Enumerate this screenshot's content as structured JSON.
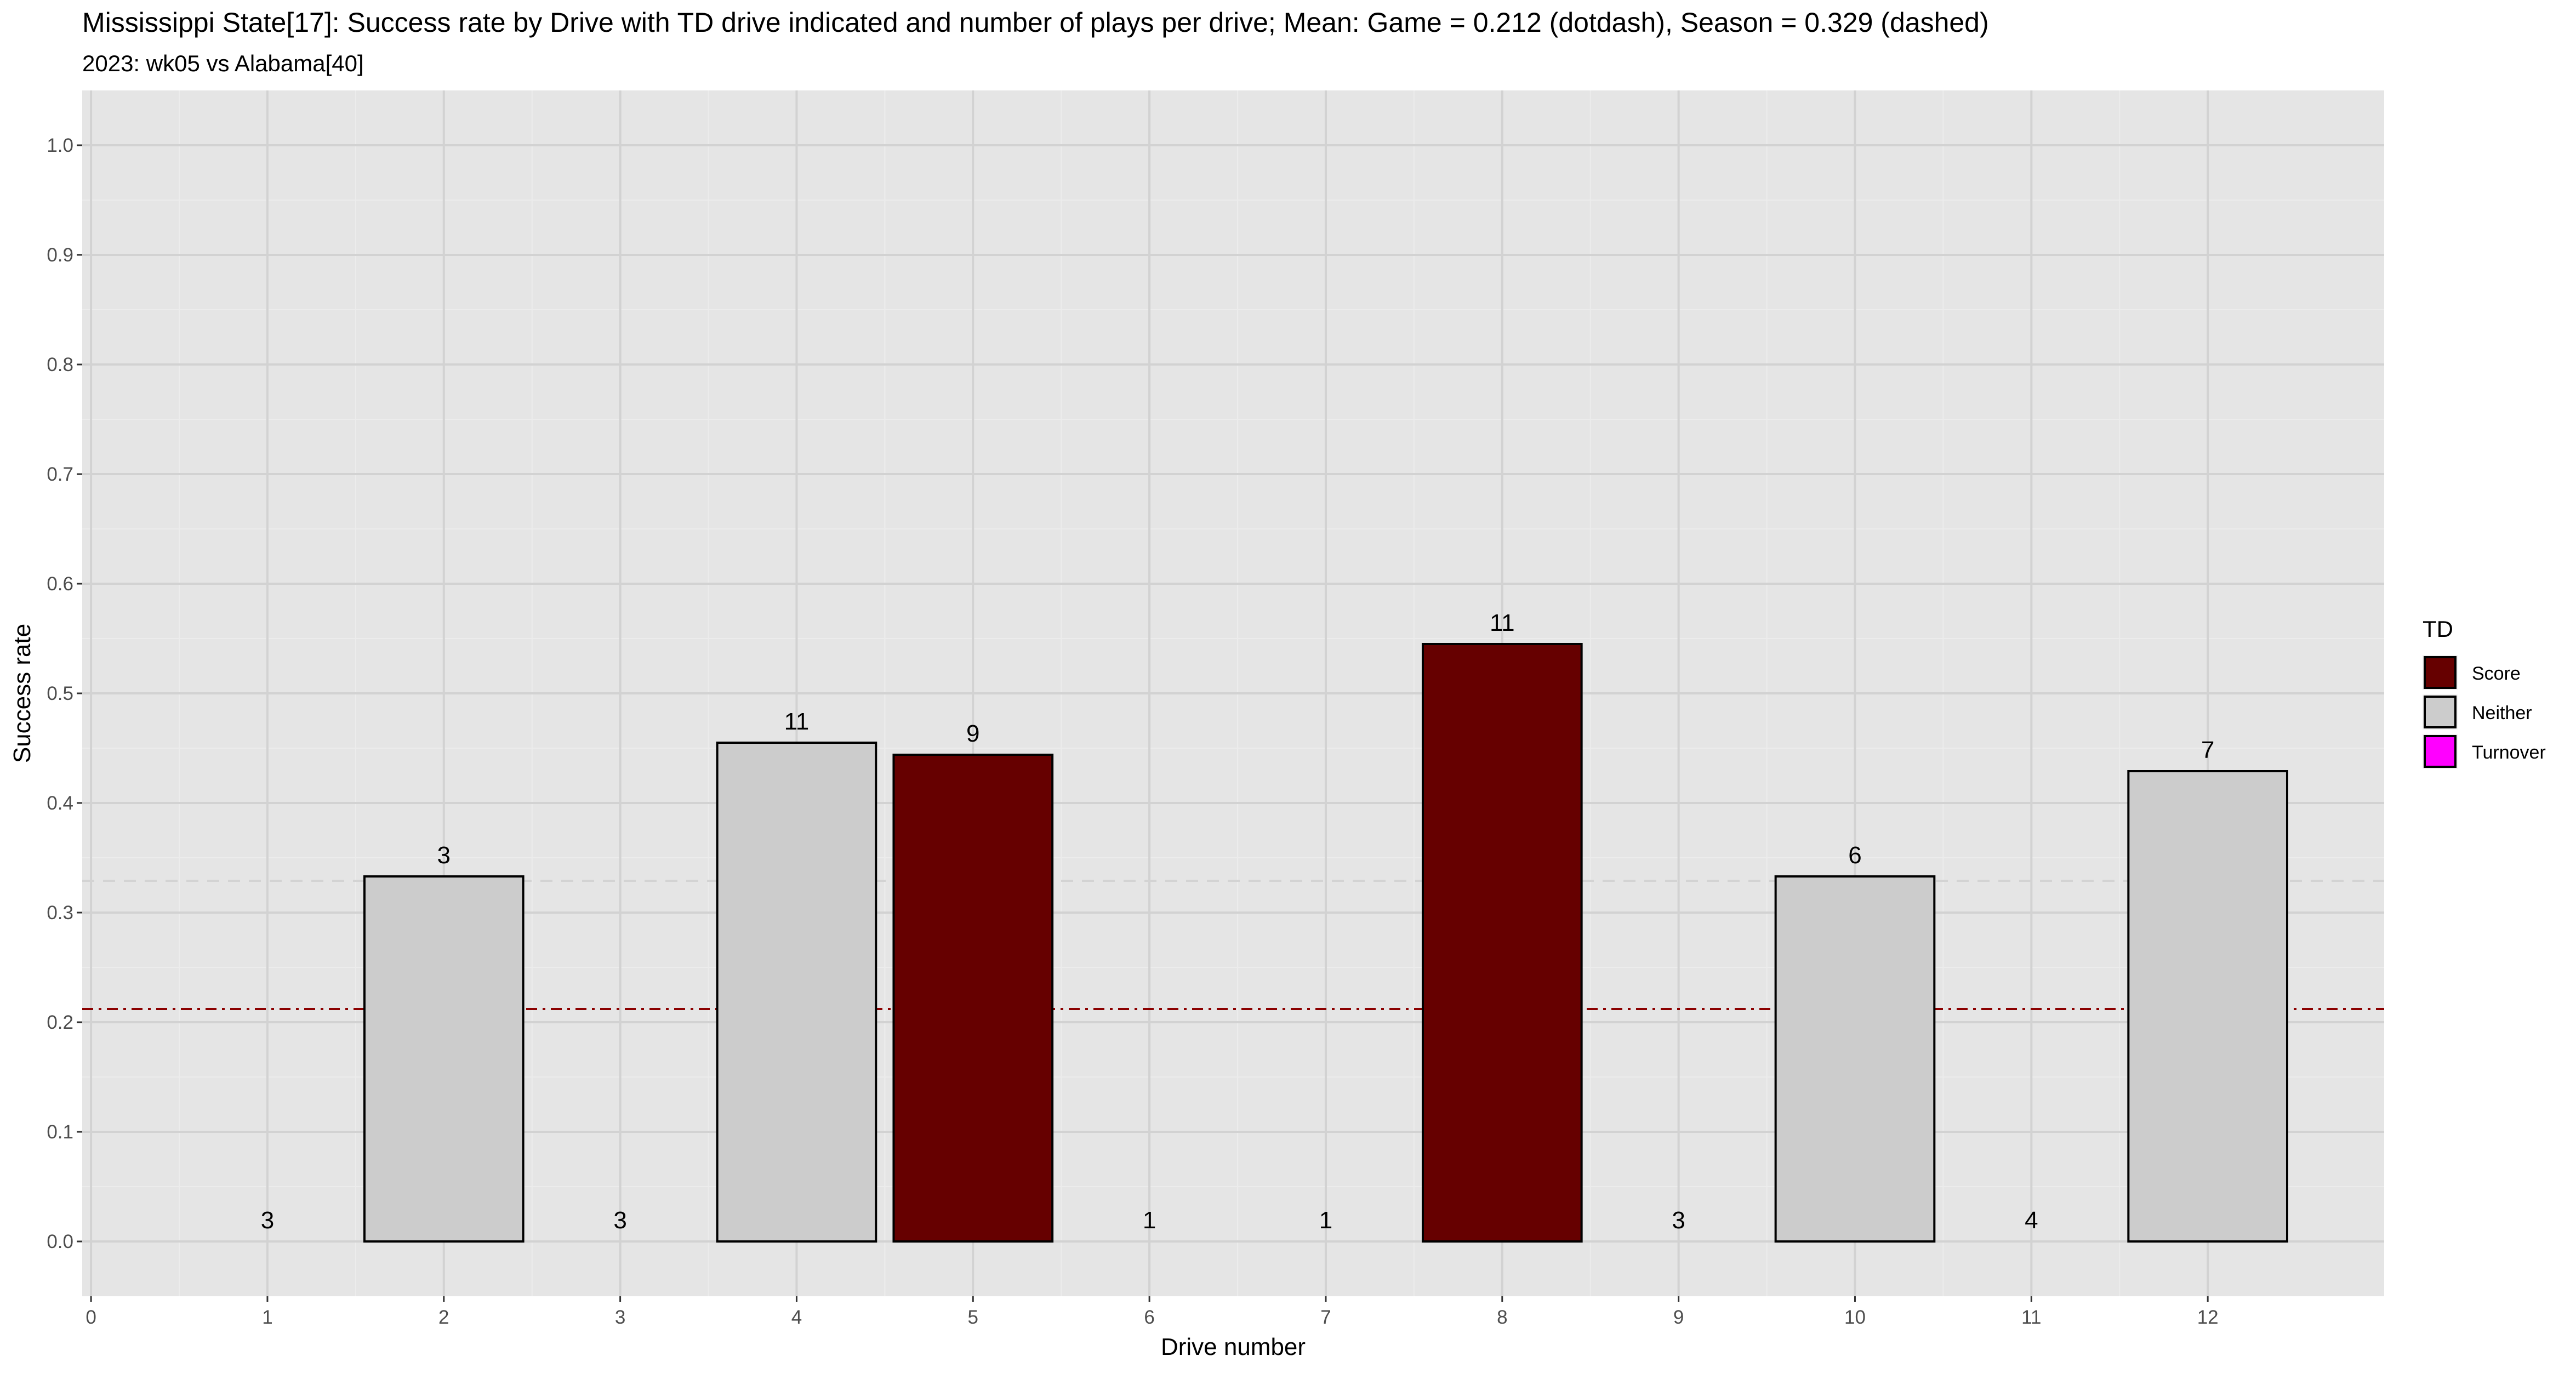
{
  "chart_data": {
    "type": "bar",
    "title": "Mississippi State[17]: Success rate by Drive with TD drive indicated and number of plays per drive; Mean: Game = 0.212 (dotdash), Season = 0.329 (dashed)",
    "subtitle": "2023: wk05 vs Alabama[40]",
    "xlabel": "Drive number",
    "ylabel": "Success rate",
    "x": [
      1,
      2,
      3,
      4,
      5,
      6,
      7,
      8,
      9,
      10,
      11,
      12
    ],
    "values": [
      0.0,
      0.333,
      0.0,
      0.455,
      0.444,
      0.0,
      0.0,
      0.545,
      0.0,
      0.333,
      0.0,
      0.429
    ],
    "plays": [
      "3",
      "3",
      "3",
      "11",
      "9",
      "1",
      "1",
      "11",
      "3",
      "6",
      "4",
      "7"
    ],
    "td": [
      "Neither",
      "Neither",
      "Neither",
      "Neither",
      "Score",
      "Neither",
      "Neither",
      "Score",
      "Neither",
      "Neither",
      "Neither",
      "Neither"
    ],
    "xlim": [
      -0.05,
      13.0
    ],
    "ylim": [
      -0.05,
      1.05
    ],
    "x_ticks": [
      "0",
      "1",
      "2",
      "3",
      "4",
      "5",
      "6",
      "7",
      "8",
      "9",
      "10",
      "11",
      "12"
    ],
    "y_ticks": [
      "0.0",
      "0.1",
      "0.2",
      "0.3",
      "0.4",
      "0.5",
      "0.6",
      "0.7",
      "0.8",
      "0.9",
      "1.0"
    ],
    "reference_lines": [
      {
        "value": 0.212,
        "style": "dotdash",
        "color": "#8B0000"
      },
      {
        "value": 0.329,
        "style": "dashed",
        "color": "#d3d3d3"
      }
    ],
    "grid": true,
    "legend": {
      "title": "TD",
      "position": "right",
      "entries": [
        {
          "label": "Score",
          "color": "#660000"
        },
        {
          "label": "Neither",
          "color": "#cccccc"
        },
        {
          "label": "Turnover",
          "color": "#ff00ff"
        }
      ]
    },
    "colors": {
      "panel": "#e5e5e5",
      "grid": "#ffffff",
      "Score": "#660000",
      "Neither": "#cccccc",
      "Turnover": "#ff00ff"
    }
  }
}
